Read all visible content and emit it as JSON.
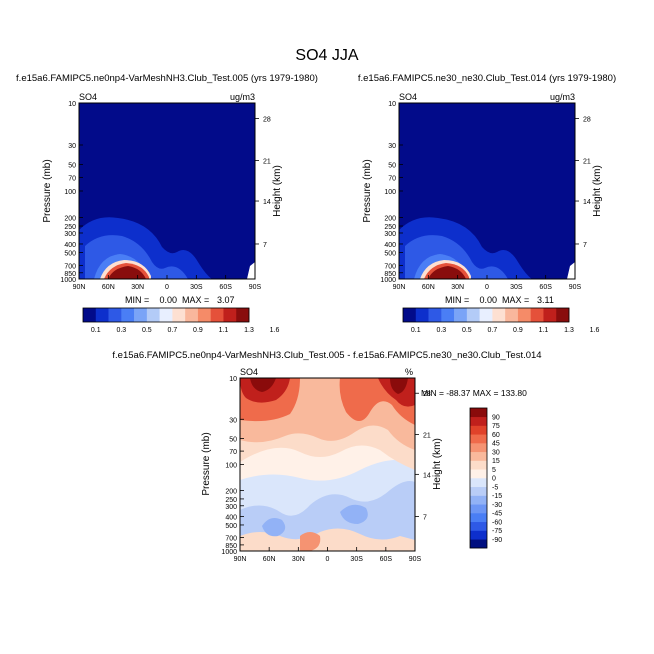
{
  "figure_title": "SO4 JJA",
  "chart_data": [
    {
      "type": "contour",
      "title": "f.e15a6.FAMIPC5.ne0np4-VarMeshNH3.Club_Test.005 (yrs 1979-1980)",
      "left_label": "SO4",
      "right_label": "ug/m3",
      "ylabel": "Pressure (mb)",
      "y2label": "Height (km)",
      "x_ticks": [
        "90N",
        "60N",
        "30N",
        "0",
        "30S",
        "60S",
        "90S"
      ],
      "y_ticks": [
        "10",
        "30",
        "50",
        "70",
        "100",
        "200",
        "250",
        "300",
        "400",
        "500",
        "700",
        "850",
        "1000"
      ],
      "y2_ticks": [
        "28",
        "21",
        "14",
        "7"
      ],
      "xlim": [
        90,
        -90
      ],
      "ylim": [
        1000,
        10
      ],
      "min_label": "MIN =",
      "min": "0.00",
      "max_label": "MAX =",
      "max": "3.07",
      "colorbar_levels": [
        "0.1",
        "0.3",
        "0.5",
        "0.7",
        "0.9",
        "1.1",
        "1.3",
        "1.6"
      ]
    },
    {
      "type": "contour",
      "title": "f.e15a6.FAMIPC5.ne30_ne30.Club_Test.014 (yrs 1979-1980)",
      "left_label": "SO4",
      "right_label": "ug/m3",
      "ylabel": "Pressure (mb)",
      "y2label": "Height (km)",
      "x_ticks": [
        "90N",
        "60N",
        "30N",
        "0",
        "30S",
        "60S",
        "90S"
      ],
      "y_ticks": [
        "10",
        "30",
        "50",
        "70",
        "100",
        "200",
        "250",
        "300",
        "400",
        "500",
        "700",
        "850",
        "1000"
      ],
      "y2_ticks": [
        "28",
        "21",
        "14",
        "7"
      ],
      "xlim": [
        90,
        -90
      ],
      "ylim": [
        1000,
        10
      ],
      "min_label": "MIN =",
      "min": "0.00",
      "max_label": "MAX =",
      "max": "3.11",
      "colorbar_levels": [
        "0.1",
        "0.3",
        "0.5",
        "0.7",
        "0.9",
        "1.1",
        "1.3",
        "1.6"
      ]
    },
    {
      "type": "contour",
      "title": "f.e15a6.FAMIPC5.ne0np4-VarMeshNH3.Club_Test.005 - f.e15a6.FAMIPC5.ne30_ne30.Club_Test.014",
      "left_label": "SO4",
      "right_label": "%",
      "ylabel": "Pressure (mb)",
      "y2label": "Height (km)",
      "x_ticks": [
        "90N",
        "60N",
        "30N",
        "0",
        "30S",
        "60S",
        "90S"
      ],
      "y_ticks": [
        "10",
        "30",
        "50",
        "70",
        "100",
        "200",
        "250",
        "300",
        "400",
        "500",
        "700",
        "850",
        "1000"
      ],
      "y2_ticks": [
        "28",
        "21",
        "14",
        "7"
      ],
      "xlim": [
        90,
        -90
      ],
      "ylim": [
        1000,
        10
      ],
      "minmax_text": "MIN = -88.37  MAX = 133.80",
      "colorbar_levels": [
        "90",
        "75",
        "60",
        "45",
        "30",
        "15",
        "5",
        "0",
        "-5",
        "-15",
        "-30",
        "-45",
        "-60",
        "-75",
        "-90"
      ]
    }
  ],
  "colors": {
    "blue_red_12": [
      "#020b8a",
      "#0d2fcc",
      "#2e59e6",
      "#4a7ef5",
      "#7aa4f7",
      "#b3cbf7",
      "#e8efff",
      "#fde0d2",
      "#f9b79c",
      "#f58b68",
      "#e5513a",
      "#c0201c",
      "#890d0d"
    ],
    "diff_16": [
      "#000f80",
      "#0d2fcc",
      "#2e59e6",
      "#4a7ef5",
      "#6d96f5",
      "#92b2f6",
      "#b9cdf7",
      "#dae6fb",
      "#fff1e8",
      "#fcdcc9",
      "#f9b99c",
      "#f59372",
      "#ef6b4b",
      "#e0422a",
      "#c0201c",
      "#8a0b0b"
    ]
  }
}
